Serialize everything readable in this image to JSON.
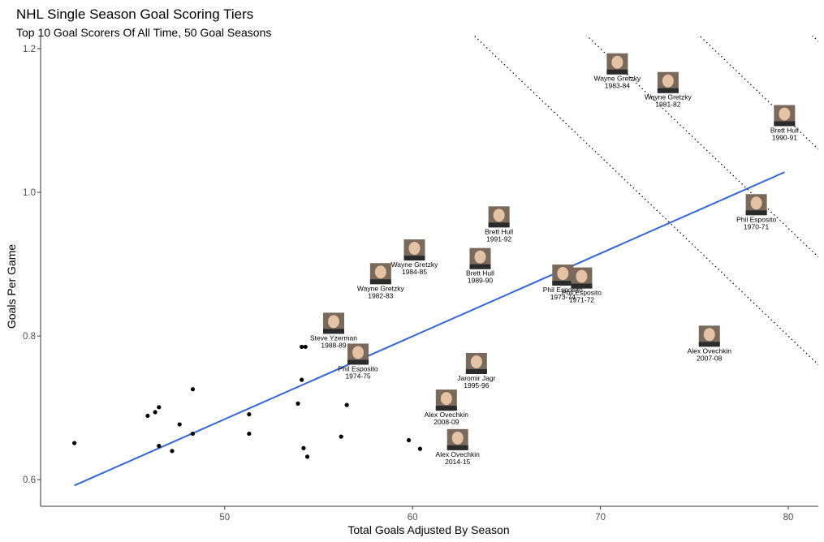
{
  "chart_data": {
    "type": "scatter",
    "title": "NHL Single Season Goal Scoring Tiers",
    "subtitle": "Top 10 Goal Scorers Of All Time, 50 Goal Seasons",
    "xlabel": "Total Goals Adjusted By Season",
    "ylabel": "Goals Per Game",
    "xlim": [
      40.2,
      81.6
    ],
    "ylim": [
      0.563,
      1.218
    ],
    "xticks": [
      50,
      60,
      70,
      80
    ],
    "yticks": [
      0.6,
      0.8,
      1.0,
      1.2
    ],
    "ytick_labels": [
      "0.6",
      "0.8",
      "1.0",
      "1.2"
    ],
    "grid": false,
    "trend_line": {
      "color": "#3366dd",
      "start": [
        42.0,
        0.592
      ],
      "end": [
        79.8,
        1.028
      ]
    },
    "tier_lines": [
      {
        "intercept": 2.8,
        "slope": -0.025
      },
      {
        "intercept": 2.95,
        "slope": -0.025
      },
      {
        "intercept": 3.1,
        "slope": -0.025
      },
      {
        "intercept": 3.25,
        "slope": -0.025
      },
      {
        "intercept": 3.4,
        "slope": -0.025
      },
      {
        "intercept": 3.55,
        "slope": -0.025
      },
      {
        "intercept": 3.7,
        "slope": -0.025
      }
    ],
    "points": [
      [
        42.0,
        0.651
      ],
      [
        45.9,
        0.689
      ],
      [
        46.3,
        0.694
      ],
      [
        46.5,
        0.701
      ],
      [
        46.5,
        0.647
      ],
      [
        47.2,
        0.64
      ],
      [
        47.6,
        0.677
      ],
      [
        48.3,
        0.726
      ],
      [
        48.3,
        0.664
      ],
      [
        51.3,
        0.691
      ],
      [
        51.3,
        0.664
      ],
      [
        53.9,
        0.706
      ],
      [
        54.1,
        0.785
      ],
      [
        54.1,
        0.739
      ],
      [
        54.2,
        0.644
      ],
      [
        54.3,
        0.785
      ],
      [
        54.4,
        0.632
      ],
      [
        56.2,
        0.66
      ],
      [
        56.5,
        0.704
      ],
      [
        59.8,
        0.655
      ],
      [
        60.4,
        0.643
      ]
    ],
    "labeled_seasons": [
      {
        "player": "Wayne Gretzky",
        "season": "1983-84",
        "x": 70.9,
        "y": 1.163
      },
      {
        "player": "Wayne Gretzky",
        "season": "1981-82",
        "x": 73.6,
        "y": 1.137
      },
      {
        "player": "Brett Hull",
        "season": "1990-91",
        "x": 79.8,
        "y": 1.091
      },
      {
        "player": "Phil Esposito",
        "season": "1970-71",
        "x": 78.3,
        "y": 0.967
      },
      {
        "player": "Brett Hull",
        "season": "1991-92",
        "x": 64.6,
        "y": 0.95
      },
      {
        "player": "Wayne Gretzky",
        "season": "1984-85",
        "x": 60.1,
        "y": 0.904
      },
      {
        "player": "Brett Hull",
        "season": "1989-90",
        "x": 63.6,
        "y": 0.892
      },
      {
        "player": "Wayne Gretzky",
        "season": "1982-83",
        "x": 58.3,
        "y": 0.871
      },
      {
        "player": "Phil Esposito",
        "season": "1973-74",
        "x": 68.0,
        "y": 0.869
      },
      {
        "player": "Phil Esposito",
        "season": "1971-72",
        "x": 69.0,
        "y": 0.865
      },
      {
        "player": "Steve Yzerman",
        "season": "1988-89",
        "x": 55.8,
        "y": 0.802
      },
      {
        "player": "Alex Ovechkin",
        "season": "2007-08",
        "x": 75.8,
        "y": 0.784
      },
      {
        "player": "Phil Esposito",
        "season": "1974-75",
        "x": 57.1,
        "y": 0.759
      },
      {
        "player": "Jaromir Jagr",
        "season": "1995-96",
        "x": 63.4,
        "y": 0.746
      },
      {
        "player": "Alex Ovechkin",
        "season": "2008-09",
        "x": 61.8,
        "y": 0.695
      },
      {
        "player": "Alex Ovechkin",
        "season": "2014-15",
        "x": 62.4,
        "y": 0.64
      }
    ]
  },
  "colors": {
    "text": "#000000",
    "tick_text": "#4d4d4d",
    "axis": "#333333",
    "tier_line": "#000000",
    "trend": "#3366dd",
    "point": "#000000"
  }
}
